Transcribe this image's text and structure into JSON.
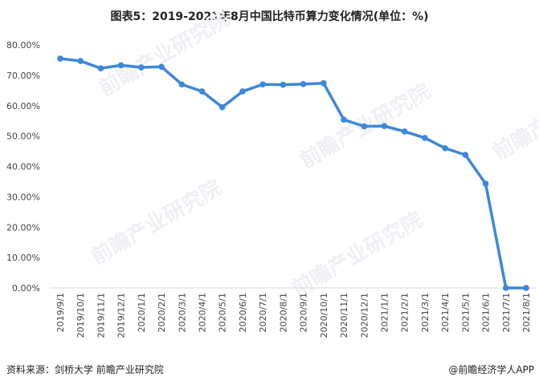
{
  "title": "图表5：2019-2021年8月中国比特币算力变化情况(单位：%)",
  "footer": {
    "source": "资料来源：剑桥大学 前瞻产业研究院",
    "credit": "@前瞻经济学人APP"
  },
  "watermark": "前瞻产业研究院",
  "chart_data": {
    "type": "line",
    "title": "图表5：2019-2021年8月中国比特币算力变化情况(单位：%)",
    "categories": [
      "2019/9/1",
      "2019/10/1",
      "2019/11/1",
      "2019/12/1",
      "2020/1/1",
      "2020/2/1",
      "2020/3/1",
      "2020/4/1",
      "2020/5/1",
      "2020/6/1",
      "2020/7/1",
      "2020/8/1",
      "2020/9/1",
      "2020/10/1",
      "2020/11/1",
      "2020/12/1",
      "2021/1/1",
      "2021/2/1",
      "2021/3/1",
      "2021/4/1",
      "2021/5/1",
      "2021/6/1",
      "2021/7/1",
      "2021/8/1"
    ],
    "values": [
      75.5,
      74.7,
      72.3,
      73.3,
      72.6,
      72.8,
      67.0,
      64.7,
      59.5,
      64.7,
      67.0,
      66.9,
      67.1,
      67.4,
      55.4,
      53.2,
      53.3,
      51.5,
      49.4,
      46.0,
      43.8,
      34.3,
      0,
      0
    ],
    "yticks": [
      "0.00%",
      "10.00%",
      "20.00%",
      "30.00%",
      "40.00%",
      "50.00%",
      "60.00%",
      "70.00%",
      "80.00%"
    ],
    "ylim": [
      0,
      80
    ],
    "grid": false,
    "color": "#3d87dc"
  }
}
